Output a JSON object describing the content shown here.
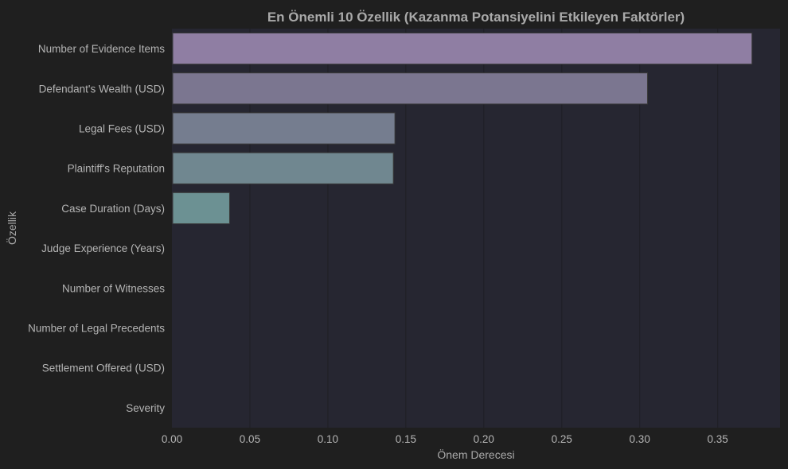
{
  "chart_data": {
    "type": "bar",
    "orientation": "horizontal",
    "title": "En Önemli 10 Özellik (Kazanma Potansiyelini Etkileyen Faktörler)",
    "xlabel": "Önem Derecesi",
    "ylabel": "Özellik",
    "xlim": [
      0,
      0.39
    ],
    "xticks": [
      0.0,
      0.05,
      0.1,
      0.15,
      0.2,
      0.25,
      0.3,
      0.35
    ],
    "xtick_labels": [
      "0.00",
      "0.05",
      "0.10",
      "0.15",
      "0.20",
      "0.25",
      "0.30",
      "0.35"
    ],
    "grid": "vertical",
    "categories": [
      "Number of Evidence Items",
      "Defendant's Wealth (USD)",
      "Legal Fees (USD)",
      "Plaintiff's Reputation",
      "Case Duration (Days)",
      "Judge Experience (Years)",
      "Number of Witnesses",
      "Number of Legal Precedents",
      "Settlement Offered (USD)",
      "Severity"
    ],
    "values": [
      0.372,
      0.305,
      0.143,
      0.142,
      0.037,
      0.0,
      0.0,
      0.0,
      0.0,
      0.0
    ],
    "colors": [
      "#8f7ea3",
      "#7b7690",
      "#757d8f",
      "#708790",
      "#6c9193",
      "#6a9796",
      "#6a9796",
      "#6a9796",
      "#6a9796",
      "#6a9796"
    ]
  },
  "theme": {
    "figure_bg": "#1f1f1f",
    "plot_bg": "#262631",
    "grid_color": "#202026",
    "text_color": "#a9a9a9",
    "bar_edge": "#3a3a3a"
  }
}
